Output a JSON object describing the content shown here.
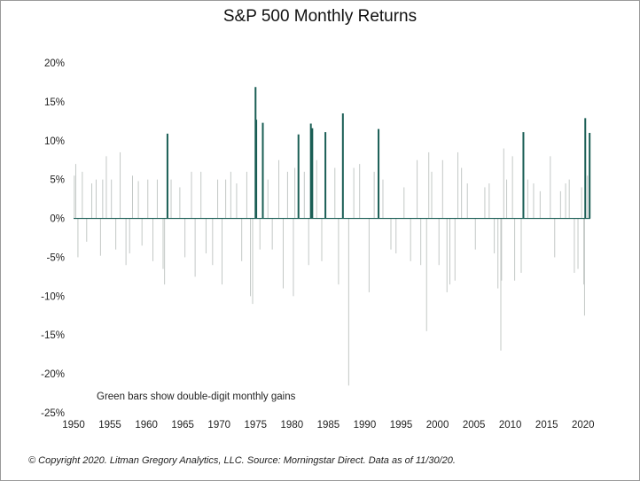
{
  "page": {
    "footer": "© Copyright 2020. Litman Gregory Analytics, LLC. Source: Morningstar Direct. Data as of 11/30/20."
  },
  "chart_data": {
    "type": "bar",
    "title": "S&P 500 Monthly Returns",
    "xlabel": "",
    "ylabel": "",
    "xlim": [
      1950,
      2021
    ],
    "ylim": [
      -25,
      20
    ],
    "x_ticks": [
      "1950",
      "1955",
      "1960",
      "1965",
      "1970",
      "1975",
      "1980",
      "1985",
      "1990",
      "1995",
      "2000",
      "2005",
      "2010",
      "2015",
      "2020"
    ],
    "y_ticks": [
      "20%",
      "15%",
      "10%",
      "5%",
      "0%",
      "-5%",
      "-10%",
      "-15%",
      "-20%",
      "-25%"
    ],
    "grid": false,
    "annotation": "Green bars show double-digit monthly gains",
    "colors": {
      "normal": "#c3c8c6",
      "highlight": "#1a5e55",
      "axis": "#1a5e55"
    },
    "series": [
      {
        "role": "highlight",
        "x": [
          1962.9,
          1975.0,
          1975.1,
          1976.0,
          1980.9,
          1982.6,
          1982.8,
          1984.6,
          1987.0,
          1991.9,
          2011.8,
          2020.3,
          2020.9
        ],
        "values": [
          10.9,
          16.9,
          12.7,
          12.3,
          10.8,
          12.2,
          11.6,
          11.1,
          13.5,
          11.5,
          11.1,
          12.9,
          11.0
        ]
      },
      {
        "role": "normal",
        "x": [
          1950.1,
          1950.3,
          1950.6,
          1951.2,
          1951.8,
          1952.5,
          1953.1,
          1953.7,
          1954.0,
          1954.5,
          1955.2,
          1955.8,
          1956.4,
          1957.2,
          1957.7,
          1958.1,
          1958.9,
          1959.4,
          1960.2,
          1960.9,
          1961.5,
          1962.3,
          1962.5,
          1963.4,
          1964.6,
          1965.3,
          1966.2,
          1966.7,
          1967.5,
          1968.2,
          1969.1,
          1969.8,
          1970.4,
          1970.9,
          1971.6,
          1972.4,
          1973.1,
          1973.8,
          1974.3,
          1974.6,
          1975.6,
          1976.7,
          1977.3,
          1978.2,
          1978.8,
          1979.4,
          1980.2,
          1980.4,
          1981.7,
          1982.3,
          1983.4,
          1984.1,
          1985.9,
          1986.4,
          1987.8,
          1988.5,
          1989.3,
          1990.6,
          1991.3,
          1992.5,
          1993.6,
          1994.3,
          1995.4,
          1996.3,
          1997.2,
          1997.7,
          1998.5,
          1998.8,
          1999.2,
          2000.2,
          2000.7,
          2001.3,
          2001.7,
          2002.4,
          2002.8,
          2003.3,
          2004.1,
          2005.2,
          2006.5,
          2007.1,
          2007.8,
          2008.3,
          2008.7,
          2008.8,
          2009.1,
          2009.5,
          2010.3,
          2010.6,
          2011.5,
          2012.4,
          2013.2,
          2014.1,
          2015.5,
          2016.1,
          2016.9,
          2017.6,
          2018.1,
          2018.8,
          2019.3,
          2019.8,
          2020.1,
          2020.2,
          2020.6
        ],
        "values": [
          5.5,
          7.0,
          -5.0,
          6.0,
          -3.0,
          4.5,
          5.0,
          -4.8,
          5.0,
          8.0,
          5.0,
          -4.0,
          8.5,
          -6.0,
          -4.5,
          5.5,
          4.8,
          -3.5,
          5.0,
          -5.5,
          5.0,
          -6.5,
          -8.5,
          5.0,
          4.0,
          -5.0,
          6.0,
          -7.5,
          6.0,
          -4.5,
          -6.0,
          5.0,
          -8.5,
          5.0,
          6.0,
          4.5,
          -5.5,
          6.0,
          -10.0,
          -11.0,
          -4.0,
          5.0,
          -4.0,
          7.5,
          -9.0,
          6.0,
          -10.0,
          6.5,
          6.0,
          -6.0,
          7.5,
          -5.5,
          6.5,
          -8.5,
          -21.5,
          6.5,
          7.0,
          -9.5,
          6.0,
          5.0,
          -4.0,
          -4.5,
          4.0,
          -5.5,
          7.5,
          -6.0,
          -14.5,
          8.5,
          6.0,
          -6.0,
          7.5,
          -9.5,
          -8.5,
          -8.0,
          8.5,
          6.5,
          4.5,
          -4.0,
          4.0,
          4.5,
          -4.5,
          -9.0,
          -17.0,
          -8.0,
          9.0,
          5.0,
          8.0,
          -8.0,
          -7.0,
          5.0,
          4.5,
          3.5,
          8.0,
          -5.0,
          3.5,
          4.5,
          5.0,
          -7.0,
          -6.5,
          4.0,
          -8.5,
          -12.5,
          5.5
        ]
      }
    ]
  }
}
